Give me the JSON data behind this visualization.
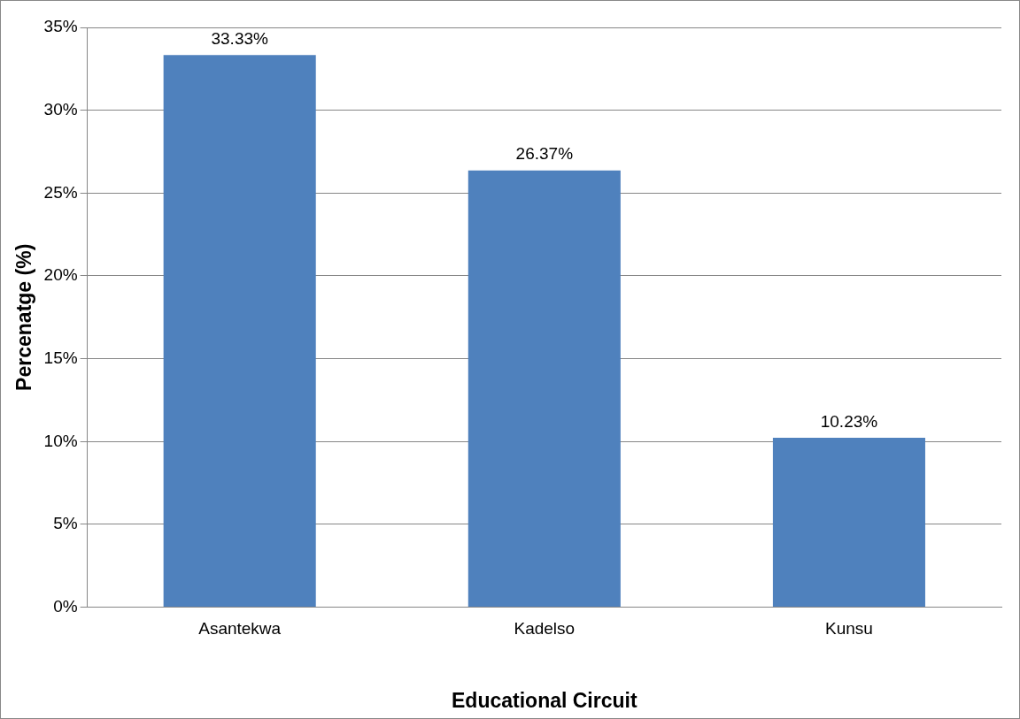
{
  "chart_data": {
    "type": "bar",
    "xlabel": "Educational Circuit",
    "ylabel": "Percenatge (%)",
    "categories": [
      "Asantekwa",
      "Kadelso",
      "Kunsu"
    ],
    "values": [
      33.33,
      26.37,
      10.23
    ],
    "color": "#4f81bd",
    "value_labels": [
      "33.33%",
      "26.37%",
      "10.23%"
    ],
    "ylim": [
      0,
      35
    ],
    "yticks": [
      {
        "value": 0,
        "label": "0%"
      },
      {
        "value": 5,
        "label": "5%"
      },
      {
        "value": 10,
        "label": "10%"
      },
      {
        "value": 15,
        "label": "15%"
      },
      {
        "value": 20,
        "label": "20%"
      },
      {
        "value": 25,
        "label": "25%"
      },
      {
        "value": 30,
        "label": "30%"
      },
      {
        "value": 35,
        "label": "35%"
      }
    ],
    "grid": "y",
    "legend": false
  }
}
